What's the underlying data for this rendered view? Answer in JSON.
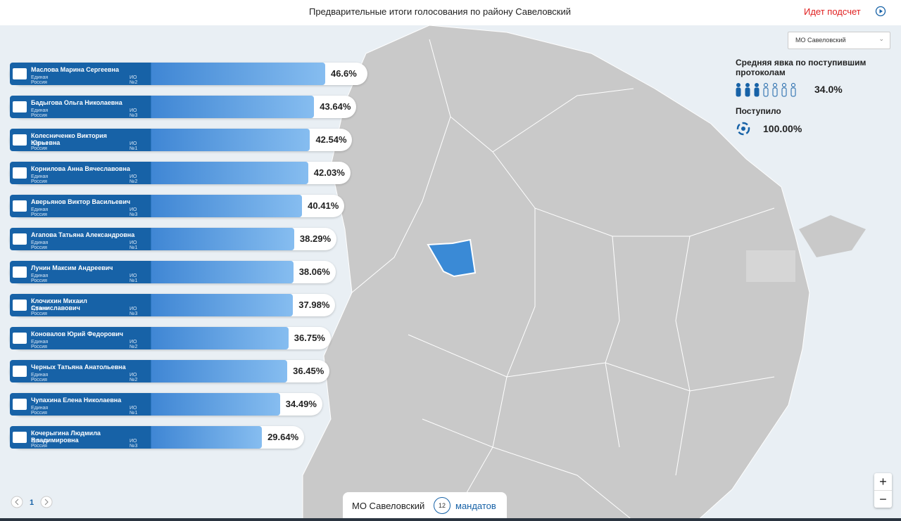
{
  "header": {
    "title": "Предварительные итоги голосования по району Савеловский",
    "status": "Идет подсчет"
  },
  "district_select": "МО Савеловский",
  "turnout": {
    "label": "Средняя явка по поступившим протоколам",
    "value": {
      "value": 34.0,
      "label": "34.0%"
    }
  },
  "received": {
    "label": "Поступило",
    "value": {
      "value": 100.0,
      "label": "100.00%"
    }
  },
  "candidates": [
    {
      "name": "Маслова Марина Сергеевна",
      "party": "Единая Россия",
      "district": "ИО №2",
      "percent": {
        "value": 46.6,
        "label": "46.6%"
      }
    },
    {
      "name": "Бадыгова Ольга Николаевна",
      "party": "Единая Россия",
      "district": "ИО №3",
      "percent": {
        "value": 43.64,
        "label": "43.64%"
      }
    },
    {
      "name": "Колесниченко Виктория Юрьевна",
      "party": "Единая Россия",
      "district": "ИО №1",
      "percent": {
        "value": 42.54,
        "label": "42.54%"
      }
    },
    {
      "name": "Корнилова Анна Вячеславовна",
      "party": "Единая Россия",
      "district": "ИО №2",
      "percent": {
        "value": 42.03,
        "label": "42.03%"
      }
    },
    {
      "name": "Аверьянов Виктор Васильевич",
      "party": "Единая Россия",
      "district": "ИО №3",
      "percent": {
        "value": 40.41,
        "label": "40.41%"
      }
    },
    {
      "name": "Агапова Татьяна Александровна",
      "party": "Единая Россия",
      "district": "ИО №1",
      "percent": {
        "value": 38.29,
        "label": "38.29%"
      }
    },
    {
      "name": "Лунин Максим Андреевич",
      "party": "Единая Россия",
      "district": "ИО №1",
      "percent": {
        "value": 38.06,
        "label": "38.06%"
      }
    },
    {
      "name": "Клочихин Михаил Станиславович",
      "party": "Единая Россия",
      "district": "ИО №3",
      "percent": {
        "value": 37.98,
        "label": "37.98%"
      }
    },
    {
      "name": "Коновалов Юрий Федорович",
      "party": "Единая Россия",
      "district": "ИО №2",
      "percent": {
        "value": 36.75,
        "label": "36.75%"
      }
    },
    {
      "name": "Черных Татьяна Анатольевна",
      "party": "Единая Россия",
      "district": "ИО №2",
      "percent": {
        "value": 36.45,
        "label": "36.45%"
      }
    },
    {
      "name": "Чупахина Елена Николаевна",
      "party": "Единая Россия",
      "district": "ИО №1",
      "percent": {
        "value": 34.49,
        "label": "34.49%"
      }
    },
    {
      "name": "Кочерыгина Людмила Владимировна",
      "party": "Единая Россия",
      "district": "ИО №3",
      "percent": {
        "value": 29.64,
        "label": "29.64%"
      }
    }
  ],
  "pagination": {
    "page": "1"
  },
  "footer": {
    "district": "МО Савеловский",
    "mandates": 12,
    "mandates_label": "мандатов"
  },
  "zoom": {
    "in": "+",
    "out": "−"
  }
}
